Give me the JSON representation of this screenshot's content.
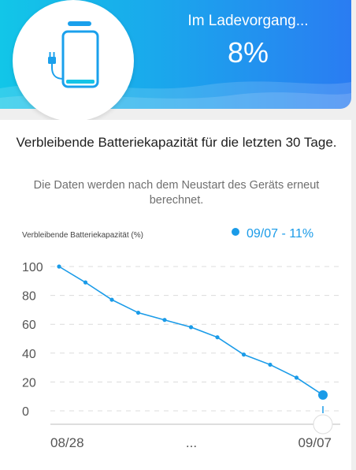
{
  "header": {
    "status_label": "Im Ladevorgang...",
    "battery_percent": "8%",
    "battery_level": 0.08,
    "gradient_colors": [
      "#12c6e8",
      "#2a7cf2"
    ]
  },
  "card": {
    "title": "Verbleibende Batteriekapazität für die letzten 30 Tage.",
    "subtitle": "Die Daten werden nach dem Neustart des Geräts erneut berechnet."
  },
  "chart_data": {
    "type": "line",
    "ylabel": "Verbleibende Batteriekapazität (%)",
    "legend_text": "09/07 - 11%",
    "y_ticks": [
      "100",
      "80",
      "60",
      "40",
      "20",
      "0"
    ],
    "ylim": [
      0,
      100
    ],
    "x_tick_labels": [
      "08/28",
      "...",
      "09/07"
    ],
    "values": [
      100,
      89,
      77,
      68,
      63,
      58,
      51,
      39,
      32,
      23,
      11
    ],
    "grid": true,
    "accent_color": "#1a9be8",
    "highlight_point": "09/07 - 11%"
  }
}
